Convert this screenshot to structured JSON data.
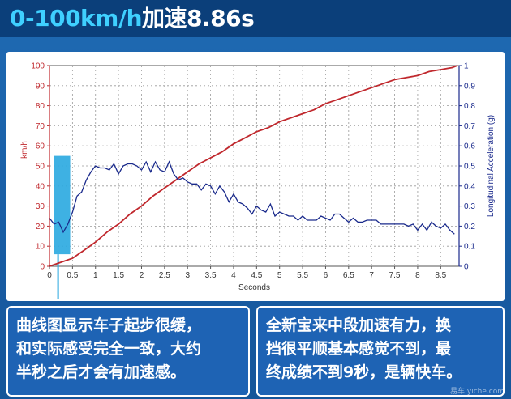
{
  "header": {
    "title_value": "0-100km/h",
    "title_suffix": "加速8.86s"
  },
  "chart_data": {
    "type": "line",
    "xlabel": "Seconds",
    "ylabel_left": "km/h",
    "ylabel_right": "Longitudinal Acceleration (g)",
    "xlim": [
      0,
      8.9
    ],
    "ylim_left": [
      0,
      100
    ],
    "ylim_right": [
      0,
      1
    ],
    "x_ticks": [
      "0",
      "0.5",
      "1",
      "1.5",
      "2",
      "2.5",
      "3",
      "3.5",
      "4",
      "4.5",
      "5",
      "5.5",
      "6",
      "6.5",
      "7",
      "7.5",
      "8",
      "8.5"
    ],
    "y_left_ticks": [
      "0",
      "10",
      "20",
      "30",
      "40",
      "50",
      "60",
      "70",
      "80",
      "90",
      "100"
    ],
    "y_right_ticks": [
      "0",
      "0.1",
      "0.2",
      "0.3",
      "0.4",
      "0.5",
      "0.6",
      "0.7",
      "0.8",
      "0.9",
      "1"
    ],
    "grid": true,
    "colors": {
      "speed": "#c0282d",
      "accel": "#1a2a8c",
      "highlight": "#29a8e0",
      "axis_left": "#c0282d",
      "axis_right": "#1a2a8c"
    },
    "series": [
      {
        "axis": "left",
        "x": [
          0,
          0.25,
          0.5,
          0.75,
          1,
          1.25,
          1.5,
          1.75,
          2,
          2.25,
          2.5,
          2.75,
          3,
          3.25,
          3.5,
          3.75,
          4,
          4.25,
          4.5,
          4.75,
          5,
          5.25,
          5.5,
          5.75,
          6,
          6.25,
          6.5,
          6.75,
          7,
          7.25,
          7.5,
          7.75,
          8,
          8.25,
          8.5,
          8.75,
          8.86
        ],
        "values": [
          0,
          2,
          4,
          8,
          12,
          17,
          21,
          26,
          30,
          35,
          39,
          43,
          47,
          51,
          54,
          57,
          61,
          64,
          67,
          69,
          72,
          74,
          76,
          78,
          81,
          83,
          85,
          87,
          89,
          91,
          93,
          94,
          95,
          97,
          98,
          99,
          100
        ]
      },
      {
        "axis": "right",
        "x": [
          0,
          0.1,
          0.2,
          0.3,
          0.4,
          0.5,
          0.6,
          0.7,
          0.8,
          0.9,
          1,
          1.1,
          1.2,
          1.3,
          1.4,
          1.5,
          1.6,
          1.7,
          1.8,
          1.9,
          2,
          2.1,
          2.2,
          2.3,
          2.4,
          2.5,
          2.6,
          2.7,
          2.8,
          2.9,
          3,
          3.1,
          3.2,
          3.3,
          3.4,
          3.5,
          3.6,
          3.7,
          3.8,
          3.9,
          4,
          4.1,
          4.2,
          4.3,
          4.4,
          4.5,
          4.6,
          4.7,
          4.8,
          4.9,
          5,
          5.1,
          5.2,
          5.3,
          5.4,
          5.5,
          5.6,
          5.7,
          5.8,
          5.9,
          6,
          6.1,
          6.2,
          6.3,
          6.4,
          6.5,
          6.6,
          6.7,
          6.8,
          6.9,
          7,
          7.1,
          7.2,
          7.3,
          7.4,
          7.5,
          7.6,
          7.7,
          7.8,
          7.9,
          8,
          8.1,
          8.2,
          8.3,
          8.4,
          8.5,
          8.6,
          8.7,
          8.8
        ],
        "values": [
          0.24,
          0.21,
          0.22,
          0.17,
          0.21,
          0.27,
          0.35,
          0.37,
          0.43,
          0.47,
          0.5,
          0.49,
          0.49,
          0.48,
          0.51,
          0.46,
          0.5,
          0.51,
          0.51,
          0.5,
          0.48,
          0.52,
          0.47,
          0.52,
          0.48,
          0.47,
          0.52,
          0.46,
          0.43,
          0.44,
          0.42,
          0.41,
          0.41,
          0.38,
          0.41,
          0.4,
          0.36,
          0.4,
          0.37,
          0.32,
          0.36,
          0.32,
          0.31,
          0.29,
          0.26,
          0.3,
          0.28,
          0.27,
          0.31,
          0.25,
          0.27,
          0.26,
          0.25,
          0.25,
          0.23,
          0.25,
          0.23,
          0.23,
          0.23,
          0.25,
          0.24,
          0.23,
          0.26,
          0.26,
          0.24,
          0.22,
          0.24,
          0.22,
          0.22,
          0.23,
          0.23,
          0.23,
          0.21,
          0.21,
          0.21,
          0.21,
          0.21,
          0.21,
          0.2,
          0.21,
          0.18,
          0.21,
          0.18,
          0.22,
          0.2,
          0.19,
          0.21,
          0.18,
          0.16
        ]
      }
    ],
    "highlight": {
      "x0": 0.1,
      "x1": 0.45,
      "y0_left": 6,
      "y1_left": 55
    }
  },
  "notes": {
    "left": [
      "曲线图显示车子起步很缓，",
      "和实际感受完全一致，大约",
      "半秒之后才会有加速感。"
    ],
    "right": [
      "全新宝来中段加速有力，换",
      "挡很平顺基本感觉不到，最",
      "终成绩不到9秒，是辆快车。"
    ]
  },
  "watermark": "易车 yiche.com"
}
